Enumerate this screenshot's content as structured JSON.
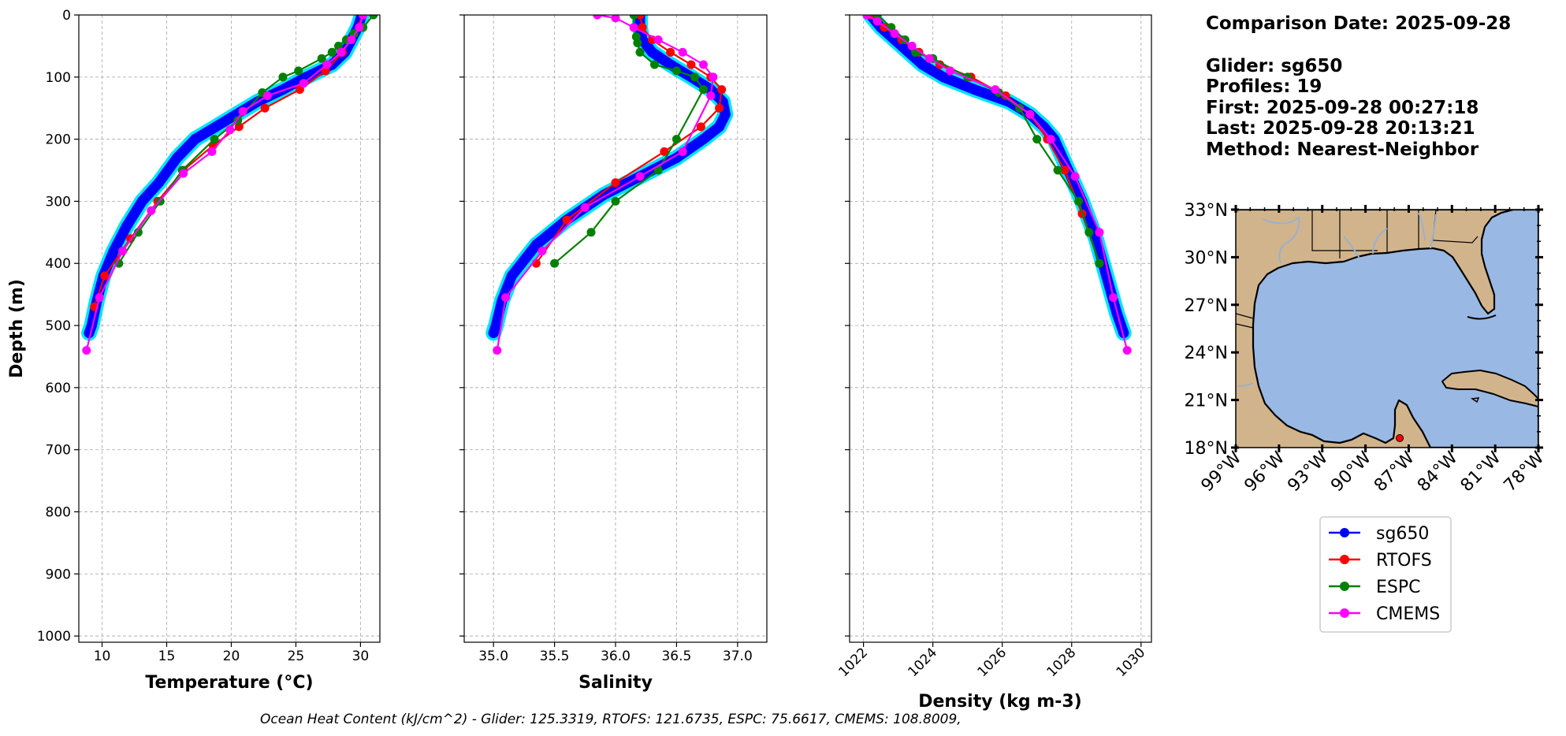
{
  "info": {
    "lines": [
      "Comparison Date: 2025-09-28",
      "",
      "Glider: sg650",
      "Profiles: 19",
      "First: 2025-09-28 00:27:18",
      "Last: 2025-09-28 20:13:21",
      "Method: Nearest-Neighbor"
    ]
  },
  "footer": {
    "text": "Ocean Heat Content (kJ/cm^2) - Glider: 125.3319,  RTOFS: 121.6735,  ESPC: 75.6617,  CMEMS: 108.8009,"
  },
  "colors": {
    "sg650": "#0000ff",
    "sg650_halo": "#00e5ff",
    "RTOFS": "#ff0000",
    "ESPC": "#008000",
    "CMEMS": "#ff00ff",
    "land": "#d2b48c",
    "ocean": "#99b8e3",
    "rivers": "#9ab0d0",
    "grid": "#b0b0b0"
  },
  "map": {
    "lon_ticks": [
      "99°W",
      "96°W",
      "93°W",
      "90°W",
      "87°W",
      "84°W",
      "81°W",
      "78°W"
    ],
    "lat_ticks": [
      "33°N",
      "30°N",
      "27°N",
      "24°N",
      "21°N",
      "18°N"
    ],
    "lon_range": [
      -99,
      -78
    ],
    "lat_range": [
      18,
      33
    ],
    "glider_position": {
      "lon": -87.9,
      "lat": 18.6
    }
  },
  "legend": {
    "entries": [
      "sg650",
      "RTOFS",
      "ESPC",
      "CMEMS"
    ]
  },
  "chart_data": [
    {
      "type": "line",
      "xlabel": "Temperature (°C)",
      "ylabel": "Depth (m)",
      "xlim": [
        8.2,
        31.5
      ],
      "ylim": [
        1010,
        0
      ],
      "x_ticks": [
        10,
        15,
        20,
        25,
        30
      ],
      "y_ticks": [
        0,
        100,
        200,
        300,
        400,
        500,
        600,
        700,
        800,
        900,
        1000
      ],
      "grid": true,
      "series": [
        {
          "name": "sg650",
          "x": [
            30.1,
            29.8,
            29.3,
            28.8,
            27.8,
            25.8,
            24.0,
            22.0,
            20.4,
            18.8,
            17.2,
            15.8,
            14.4,
            13.1,
            11.9,
            10.9,
            10.1,
            9.6,
            9.2,
            9.0
          ],
          "y": [
            0,
            20,
            40,
            60,
            80,
            100,
            120,
            140,
            160,
            180,
            200,
            230,
            270,
            300,
            340,
            380,
            420,
            460,
            500,
            512
          ]
        },
        {
          "name": "RTOFS",
          "x": [
            30.2,
            29.5,
            28.6,
            27.3,
            25.3,
            22.6,
            20.6,
            18.6,
            16.3,
            14.3,
            12.2,
            10.2,
            9.4
          ],
          "y": [
            0,
            30,
            60,
            90,
            120,
            150,
            180,
            210,
            250,
            300,
            360,
            420,
            470
          ]
        },
        {
          "name": "ESPC",
          "x": [
            31.0,
            30.2,
            29.5,
            28.9,
            28.3,
            27.8,
            27.0,
            25.2,
            24.0,
            22.4,
            20.5,
            18.7,
            16.2,
            14.5,
            12.8,
            11.3
          ],
          "y": [
            0,
            20,
            30,
            40,
            50,
            60,
            70,
            90,
            100,
            125,
            170,
            200,
            250,
            300,
            350,
            400
          ]
        },
        {
          "name": "CMEMS",
          "x": [
            30.2,
            29.9,
            29.3,
            28.5,
            27.4,
            25.6,
            22.8,
            20.9,
            19.9,
            18.5,
            16.3,
            13.8,
            11.6,
            9.8,
            8.8
          ],
          "y": [
            0,
            20,
            40,
            60,
            80,
            110,
            130,
            155,
            185,
            220,
            255,
            315,
            380,
            455,
            540
          ]
        }
      ]
    },
    {
      "type": "line",
      "xlabel": "Salinity",
      "ylabel": "",
      "xlim": [
        34.76,
        37.24
      ],
      "ylim": [
        1010,
        0
      ],
      "x_ticks": [
        35.0,
        35.5,
        36.0,
        36.5,
        37.0
      ],
      "y_ticks": [
        0,
        100,
        200,
        300,
        400,
        500,
        600,
        700,
        800,
        900,
        1000
      ],
      "grid": true,
      "series": [
        {
          "name": "sg650",
          "x": [
            36.2,
            36.2,
            36.22,
            36.3,
            36.45,
            36.62,
            36.78,
            36.88,
            36.9,
            36.85,
            36.72,
            36.5,
            36.2,
            35.9,
            35.6,
            35.35,
            35.15,
            35.07,
            35.02,
            35.0
          ],
          "y": [
            0,
            20,
            40,
            60,
            80,
            100,
            120,
            140,
            160,
            180,
            200,
            230,
            260,
            290,
            330,
            370,
            420,
            460,
            500,
            512
          ]
        },
        {
          "name": "RTOFS",
          "x": [
            36.2,
            36.22,
            36.3,
            36.45,
            36.62,
            36.78,
            36.87,
            36.85,
            36.7,
            36.4,
            36.0,
            35.6,
            35.35
          ],
          "y": [
            0,
            20,
            40,
            60,
            80,
            100,
            120,
            150,
            180,
            220,
            270,
            330,
            400
          ]
        },
        {
          "name": "ESPC",
          "x": [
            36.15,
            36.15,
            36.17,
            36.18,
            36.2,
            36.32,
            36.5,
            36.65,
            36.72,
            36.5,
            36.35,
            36.0,
            35.8,
            35.5
          ],
          "y": [
            0,
            20,
            35,
            45,
            60,
            80,
            90,
            100,
            120,
            200,
            250,
            300,
            350,
            400
          ]
        },
        {
          "name": "CMEMS",
          "x": [
            35.85,
            36.0,
            36.15,
            36.35,
            36.55,
            36.72,
            36.8,
            36.78,
            36.55,
            36.2,
            35.75,
            35.4,
            35.1,
            35.03
          ],
          "y": [
            0,
            5,
            20,
            40,
            60,
            80,
            100,
            130,
            220,
            260,
            310,
            380,
            455,
            540
          ]
        }
      ]
    },
    {
      "type": "line",
      "xlabel": "Density (kg m-3)",
      "ylabel": "",
      "xlim": [
        1021.6,
        1030.3
      ],
      "ylim": [
        1010,
        0
      ],
      "x_ticks": [
        1022,
        1024,
        1026,
        1028,
        1030
      ],
      "y_ticks": [
        0,
        100,
        200,
        300,
        400,
        500,
        600,
        700,
        800,
        900,
        1000
      ],
      "grid": true,
      "series": [
        {
          "name": "sg650",
          "x": [
            1022.2,
            1022.5,
            1022.9,
            1023.3,
            1023.7,
            1024.3,
            1025.2,
            1026.2,
            1026.8,
            1027.2,
            1027.5,
            1027.9,
            1028.3,
            1028.7,
            1029.0,
            1029.3,
            1029.5
          ],
          "y": [
            0,
            20,
            40,
            60,
            80,
            100,
            120,
            140,
            160,
            180,
            200,
            250,
            300,
            360,
            420,
            480,
            512
          ]
        },
        {
          "name": "RTOFS",
          "x": [
            1022.2,
            1022.6,
            1023.1,
            1023.6,
            1024.2,
            1025.1,
            1026.1,
            1026.8,
            1027.3,
            1027.8,
            1028.3,
            1028.8
          ],
          "y": [
            0,
            20,
            40,
            60,
            80,
            100,
            130,
            160,
            200,
            250,
            320,
            400
          ]
        },
        {
          "name": "ESPC",
          "x": [
            1022.4,
            1022.8,
            1023.2,
            1023.5,
            1024.0,
            1025.0,
            1025.9,
            1026.5,
            1027.0,
            1027.6,
            1028.2,
            1028.5,
            1028.8
          ],
          "y": [
            0,
            20,
            40,
            60,
            70,
            100,
            125,
            150,
            200,
            250,
            300,
            350,
            400
          ]
        },
        {
          "name": "CMEMS",
          "x": [
            1022.1,
            1022.4,
            1022.9,
            1023.4,
            1023.9,
            1024.5,
            1025.8,
            1026.8,
            1027.4,
            1028.1,
            1028.8,
            1029.2,
            1029.6
          ],
          "y": [
            0,
            10,
            30,
            50,
            70,
            90,
            120,
            160,
            200,
            260,
            350,
            455,
            540
          ]
        }
      ]
    }
  ]
}
